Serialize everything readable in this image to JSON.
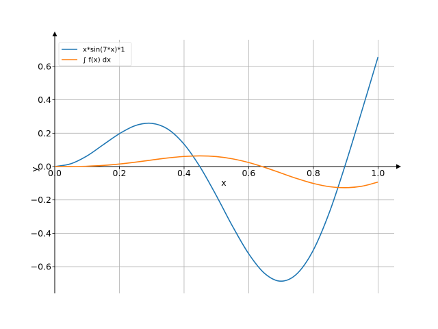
{
  "chart_data": {
    "type": "line",
    "title": "",
    "xlabel": "x",
    "ylabel": "y",
    "xlim": [
      0.0,
      1.05
    ],
    "ylim": [
      -0.76,
      0.76
    ],
    "grid": true,
    "legend_position": "top-left",
    "x_ticks": [
      0.0,
      0.2,
      0.4,
      0.6,
      0.8,
      1.0
    ],
    "x_tick_labels": [
      "0.0",
      "0.2",
      "0.4",
      "0.6",
      "0.8",
      "1.0"
    ],
    "y_ticks": [
      -0.6,
      -0.4,
      -0.2,
      0.0,
      0.2,
      0.4,
      0.6
    ],
    "y_tick_labels": [
      "−0.6",
      "−0.4",
      "−0.2",
      "0.0",
      "0.2",
      "0.4",
      "0.6"
    ],
    "x": [
      0.0,
      0.05,
      0.1,
      0.15,
      0.2,
      0.25,
      0.3,
      0.35,
      0.4,
      0.45,
      0.5,
      0.55,
      0.6,
      0.65,
      0.7,
      0.75,
      0.8,
      0.85,
      0.9,
      0.95,
      1.0
    ],
    "series": [
      {
        "name": "x*sin(7*x)*1",
        "color": "#1f77b4",
        "values": [
          0.0,
          0.017,
          0.064,
          0.131,
          0.197,
          0.246,
          0.259,
          0.224,
          0.134,
          -0.004,
          -0.175,
          -0.358,
          -0.523,
          -0.642,
          -0.687,
          -0.641,
          -0.5,
          -0.272,
          0.018,
          0.334,
          0.657
        ]
      },
      {
        "name": "∫ f(x) dx",
        "color": "#ff7f0e",
        "values": [
          0.0,
          0.0003,
          0.0021,
          0.0069,
          0.0152,
          0.0264,
          0.0393,
          0.0515,
          0.0606,
          0.0641,
          0.0597,
          0.0462,
          0.024,
          -0.0054,
          -0.039,
          -0.0725,
          -0.1012,
          -0.1206,
          -0.1267,
          -0.118,
          -0.093
        ]
      }
    ]
  }
}
